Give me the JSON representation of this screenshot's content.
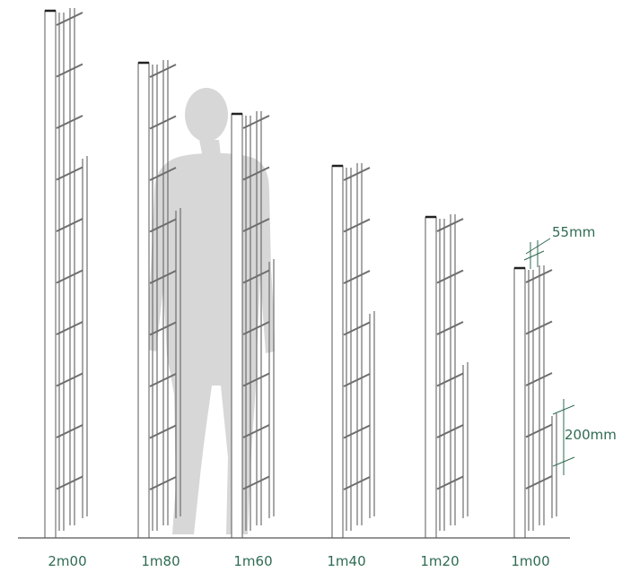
{
  "colors": {
    "accent": "#2f6b53",
    "post": "#5a5a5a",
    "mesh": "#6e6e6e",
    "silhouette": "#d7d7d7"
  },
  "annotations": {
    "wire_gap": "55mm",
    "mesh_spacing": "200mm"
  },
  "fences": [
    {
      "label": "2m00"
    },
    {
      "label": "1m80"
    },
    {
      "label": "1m60"
    },
    {
      "label": "1m40"
    },
    {
      "label": "1m20"
    },
    {
      "label": "1m00"
    }
  ]
}
